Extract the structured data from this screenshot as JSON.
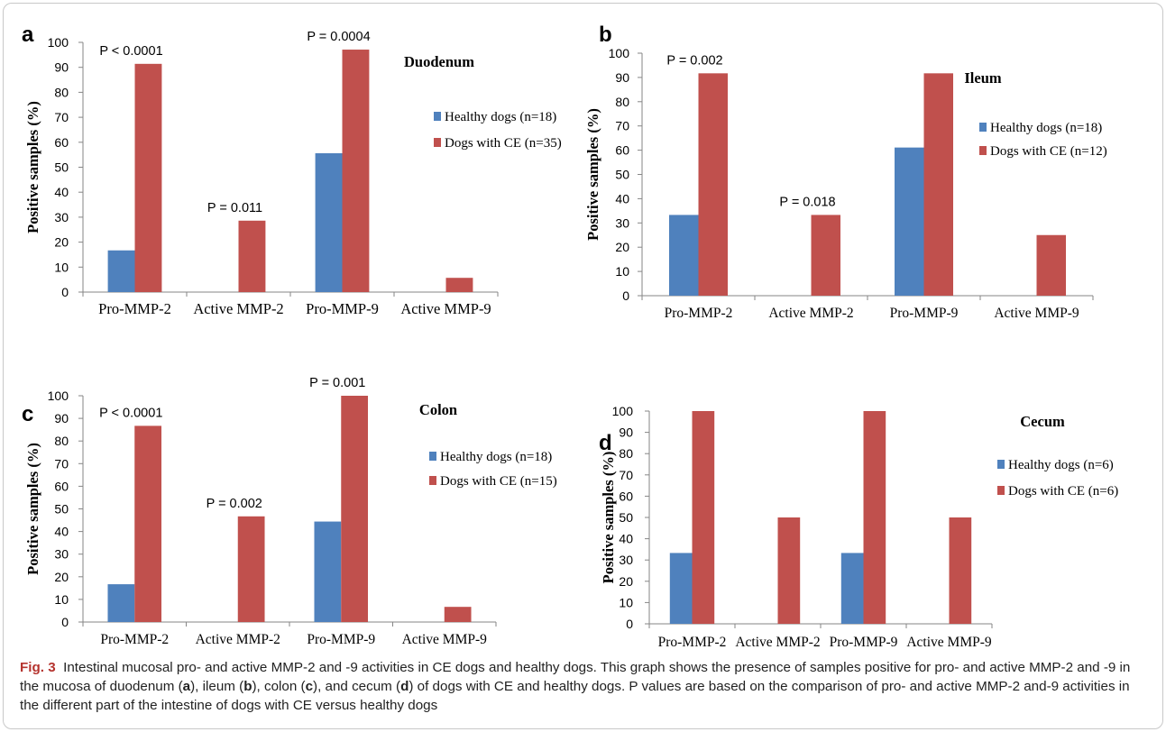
{
  "colors": {
    "healthy": "#4f81bd",
    "ce": "#c0504d",
    "axis": "#868686",
    "text": "#000000"
  },
  "chart_data": [
    {
      "type": "bar",
      "panel": "a",
      "title": "Duodenum",
      "categories": [
        "Pro-MMP-2",
        "Active MMP-2",
        "Pro-MMP-9",
        "Active MMP-9"
      ],
      "series": [
        {
          "name": "Healthy dogs (n=18)",
          "values": [
            16.7,
            0,
            55.6,
            0
          ]
        },
        {
          "name": "Dogs with CE (n=35)",
          "values": [
            91.4,
            28.6,
            97.1,
            5.7
          ]
        }
      ],
      "yticks": [
        "0",
        "10",
        "20",
        "30",
        "40",
        "50",
        "60",
        "70",
        "80",
        "90",
        "100"
      ],
      "ylabel": "Positive samples (%)",
      "ylim": [
        0,
        100
      ],
      "annotations": [
        {
          "category": 0,
          "text": "P < 0.0001"
        },
        {
          "category": 1,
          "text": "P = 0.011"
        },
        {
          "category": 2,
          "text": "P = 0.0004"
        }
      ]
    },
    {
      "type": "bar",
      "panel": "b",
      "title": "Ileum",
      "categories": [
        "Pro-MMP-2",
        "Active MMP-2",
        "Pro-MMP-9",
        "Active MMP-9"
      ],
      "series": [
        {
          "name": "Healthy dogs (n=18)",
          "values": [
            33.3,
            0,
            61.1,
            0
          ]
        },
        {
          "name": "Dogs with CE (n=12)",
          "values": [
            91.7,
            33.3,
            91.7,
            25.0
          ]
        }
      ],
      "yticks": [
        "0",
        "10",
        "20",
        "30",
        "40",
        "50",
        "60",
        "70",
        "80",
        "90",
        "100"
      ],
      "ylabel": "Positive samples (%)",
      "ylim": [
        0,
        100
      ],
      "annotations": [
        {
          "category": 0,
          "text": "P = 0.002"
        },
        {
          "category": 1,
          "text": "P = 0.018"
        }
      ]
    },
    {
      "type": "bar",
      "panel": "c",
      "title": "Colon",
      "categories": [
        "Pro-MMP-2",
        "Active MMP-2",
        "Pro-MMP-9",
        "Active MMP-9"
      ],
      "series": [
        {
          "name": "Healthy dogs (n=18)",
          "values": [
            16.7,
            0,
            44.4,
            0
          ]
        },
        {
          "name": "Dogs with CE (n=15)",
          "values": [
            86.7,
            46.7,
            100,
            6.7
          ]
        }
      ],
      "yticks": [
        "0",
        "10",
        "20",
        "30",
        "40",
        "50",
        "60",
        "70",
        "80",
        "90",
        "100"
      ],
      "ylabel": "Positive samples (%)",
      "ylim": [
        0,
        100
      ],
      "annotations": [
        {
          "category": 0,
          "text": "P < 0.0001"
        },
        {
          "category": 1,
          "text": "P = 0.002"
        },
        {
          "category": 2,
          "text": "P = 0.001"
        }
      ]
    },
    {
      "type": "bar",
      "panel": "d",
      "title": "Cecum",
      "categories": [
        "Pro-MMP-2",
        "Active MMP-2",
        "Pro-MMP-9",
        "Active MMP-9"
      ],
      "series": [
        {
          "name": "Healthy dogs (n=6)",
          "values": [
            33.3,
            0,
            33.3,
            0
          ]
        },
        {
          "name": "Dogs with CE (n=6)",
          "values": [
            100,
            50,
            100,
            50
          ]
        }
      ],
      "yticks": [
        "0",
        "10",
        "20",
        "30",
        "40",
        "50",
        "60",
        "70",
        "80",
        "90",
        "100"
      ],
      "ylabel": "Positive samples (%)",
      "ylim": [
        0,
        100
      ],
      "annotations": []
    }
  ],
  "caption": {
    "label": "Fig. 3",
    "p1": "Intestinal mucosal pro- and active MMP-2 and -9 activities in CE dogs and healthy dogs. This graph shows the presence of samples positive for pro- and active MMP-2 and -9 in the mucosa of duodenum (",
    "l1": "a",
    "p2": "), ileum (",
    "l2": "b",
    "p3": "), colon (",
    "l3": "c",
    "p4": "), and cecum (",
    "l4": "d",
    "p5": ") of dogs with CE and healthy dogs. P values are based on the comparison of pro- and active MMP-2 and-9 activities in the different part of the intestine of dogs with CE versus healthy dogs"
  }
}
